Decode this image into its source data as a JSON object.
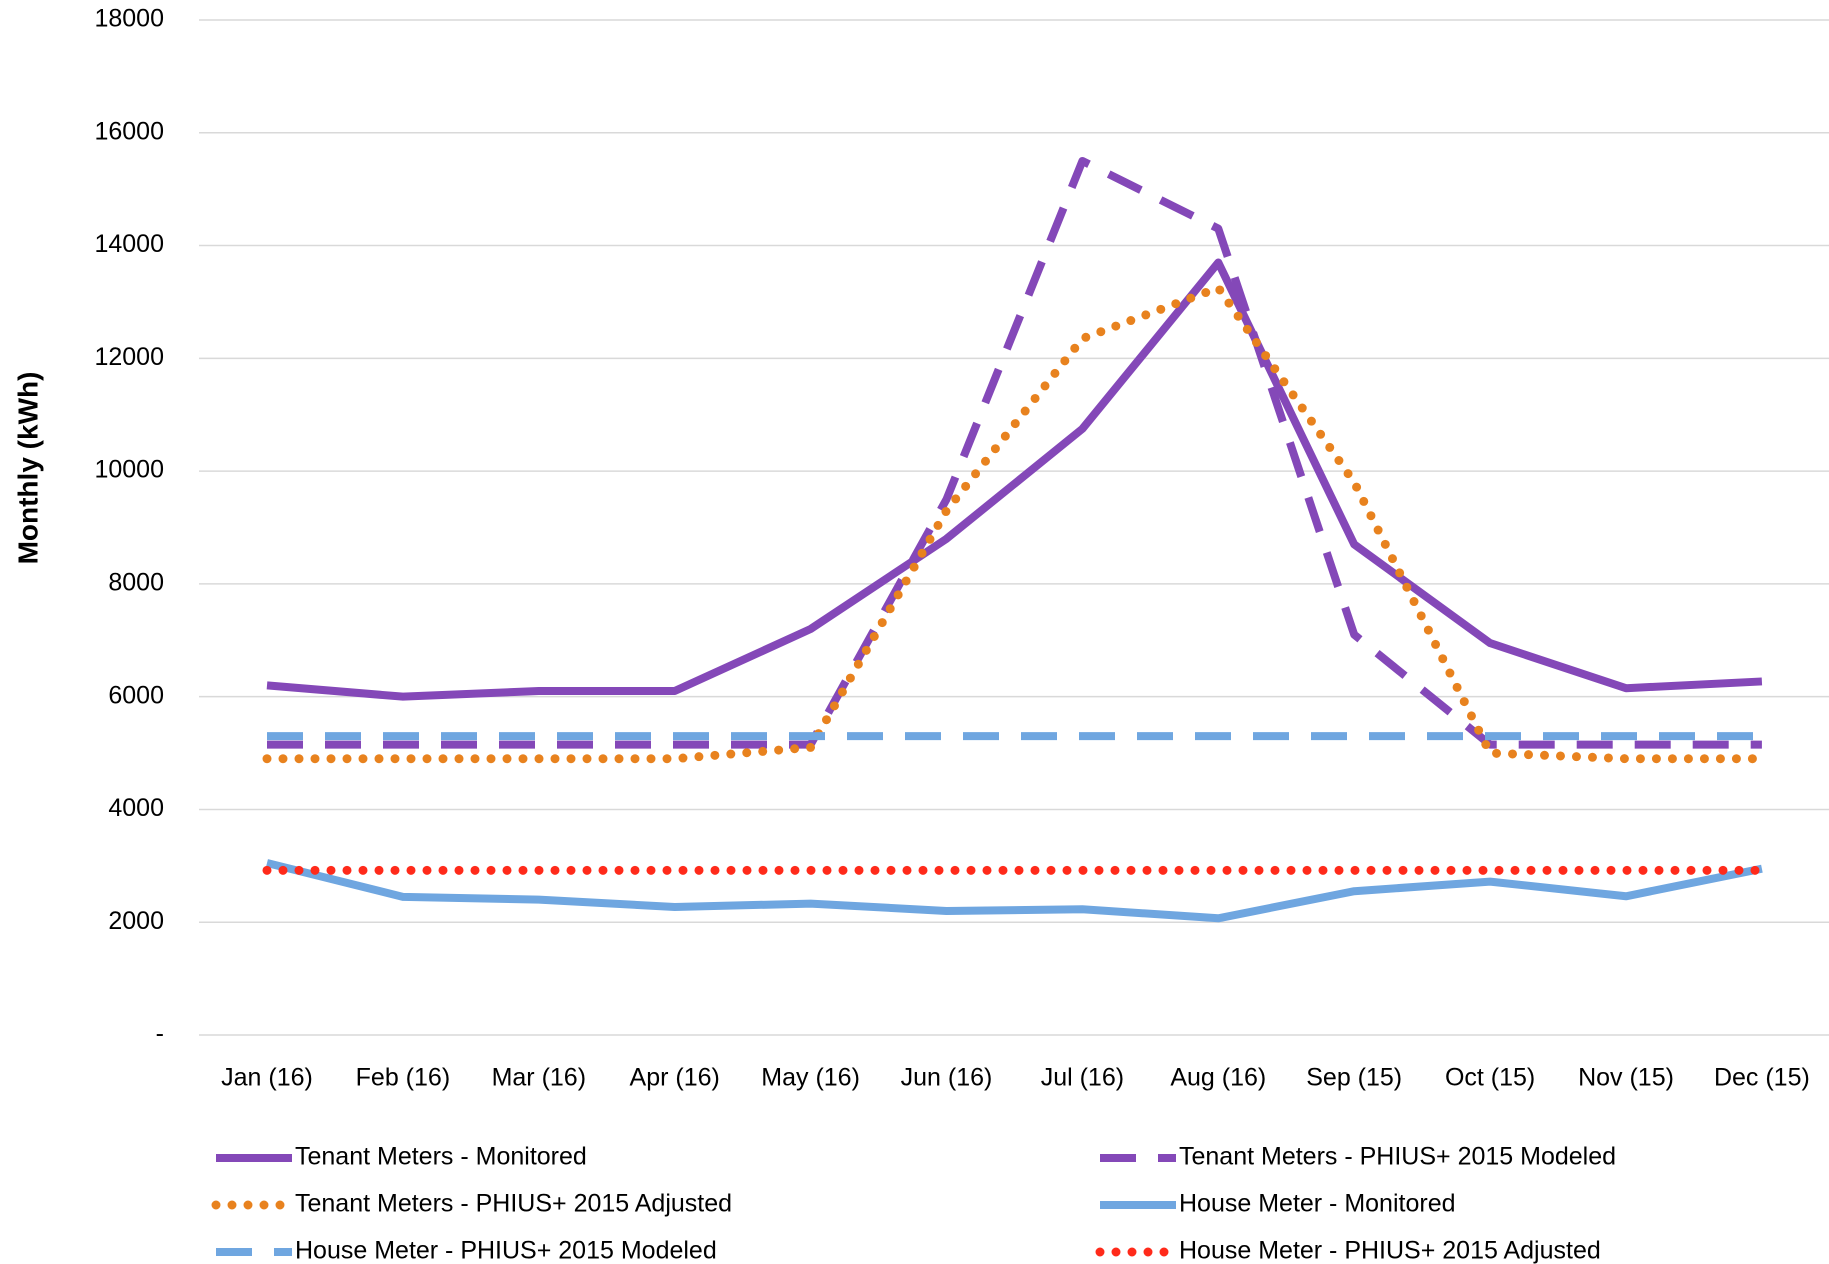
{
  "chart_data": {
    "type": "line",
    "y_label": "Monthly (kWh)",
    "categories": [
      "Jan (16)",
      "Feb (16)",
      "Mar (16)",
      "Apr (16)",
      "May (16)",
      "Jun (16)",
      "Jul (16)",
      "Aug (16)",
      "Sep (15)",
      "Oct (15)",
      "Nov (15)",
      "Dec (15)"
    ],
    "series": [
      {
        "name": "Tenant Meters - Monitored",
        "color": "#8448b8",
        "dash": "solid",
        "values": [
          6200,
          6000,
          6100,
          6100,
          7200,
          8800,
          10750,
          13700,
          8700,
          6950,
          6150,
          6270
        ]
      },
      {
        "name": "Tenant Meters - PHIUS+ 2015 Modeled",
        "color": "#8448b8",
        "dash": "dashed",
        "values": [
          5150,
          5150,
          5150,
          5150,
          5150,
          9500,
          15500,
          14300,
          7100,
          5150,
          5150,
          5150
        ]
      },
      {
        "name": "Tenant Meters - PHIUS+ 2015 Adjusted",
        "color": "#e8821e",
        "dash": "dotted",
        "values": [
          4900,
          4900,
          4900,
          4900,
          5100,
          9300,
          12350,
          13250,
          9800,
          5000,
          4900,
          4900
        ]
      },
      {
        "name": "House Meter - Monitored",
        "color": "#6fa6e0",
        "dash": "solid",
        "values": [
          3050,
          2450,
          2400,
          2270,
          2330,
          2200,
          2230,
          2070,
          2550,
          2720,
          2460,
          2950
        ]
      },
      {
        "name": "House Meter - PHIUS+ 2015 Modeled",
        "color": "#6fa6e0",
        "dash": "dashed",
        "values": [
          5300,
          5300,
          5300,
          5300,
          5300,
          5300,
          5300,
          5300,
          5300,
          5300,
          5300,
          5300
        ]
      },
      {
        "name": "House Meter - PHIUS+ 2015 Adjusted",
        "color": "#ff2a1a",
        "dash": "dotted",
        "values": [
          2920,
          2920,
          2920,
          2920,
          2920,
          2920,
          2920,
          2920,
          2920,
          2920,
          2920,
          2920
        ]
      }
    ],
    "ylim": [
      0,
      18000
    ],
    "yticks": [
      {
        "value": 0,
        "label": "-"
      },
      2000,
      4000,
      6000,
      8000,
      10000,
      12000,
      14000,
      16000,
      18000
    ],
    "grid": true,
    "legend": "bottom"
  }
}
